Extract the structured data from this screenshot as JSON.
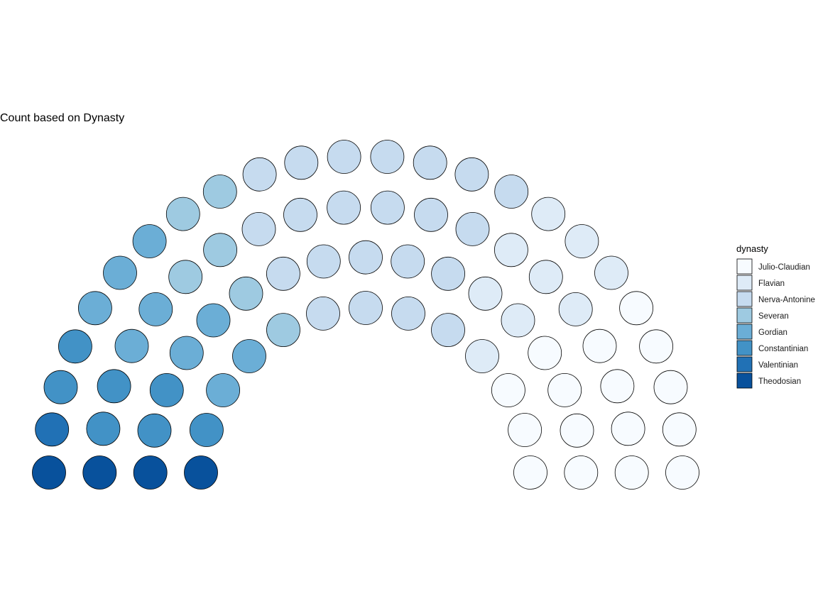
{
  "chart_data": {
    "type": "parliament",
    "title": "Count based on Dynasty",
    "legend": {
      "title": "dynasty",
      "position": "right",
      "entries": [
        {
          "label": "Julio-Claudian",
          "color": "#f7fbff"
        },
        {
          "label": "Flavian",
          "color": "#deebf7"
        },
        {
          "label": "Nerva-Antonine",
          "color": "#c6dbef"
        },
        {
          "label": "Severan",
          "color": "#9ecae1"
        },
        {
          "label": "Gordian",
          "color": "#6baed6"
        },
        {
          "label": "Constantinian",
          "color": "#4292c6"
        },
        {
          "label": "Valentinian",
          "color": "#2171b5"
        },
        {
          "label": "Theodosian",
          "color": "#08519c"
        }
      ]
    },
    "categories": [
      "Julio-Claudian",
      "Flavian",
      "Nerva-Antonine",
      "Severan",
      "Gordian",
      "Constantinian",
      "Valentinian",
      "Theodosian"
    ],
    "values": [
      16,
      9,
      22,
      6,
      9,
      7,
      1,
      4
    ],
    "rows": 4
  }
}
